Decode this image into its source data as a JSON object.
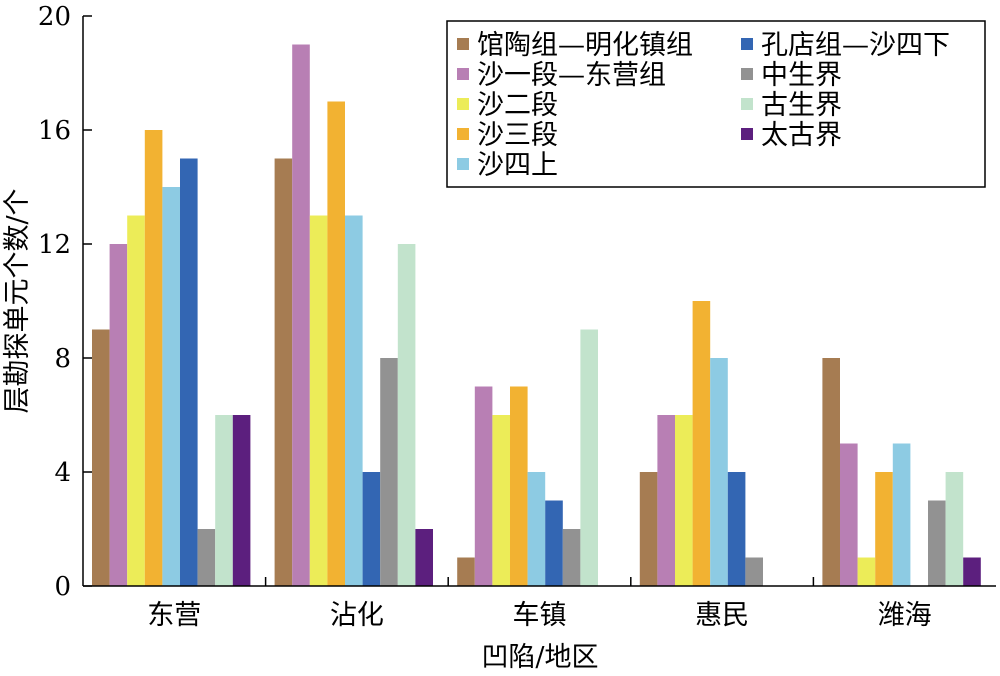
{
  "chart_data": {
    "type": "bar",
    "xlabel": "凹陷/地区",
    "ylabel": "层勘探单元个数/个",
    "ylim": [
      0,
      20
    ],
    "yticks": [
      0,
      4,
      8,
      12,
      16,
      20
    ],
    "grid": false,
    "legend_position": "top-right",
    "categories": [
      "东营",
      "沾化",
      "车镇",
      "惠民",
      "潍海"
    ],
    "series": [
      {
        "name": "馆陶组—明化镇组",
        "color": "#a67c52",
        "values": [
          9,
          15,
          1,
          4,
          8
        ]
      },
      {
        "name": "沙一段—东营组",
        "color": "#b87fb4",
        "values": [
          12,
          19,
          7,
          6,
          5
        ]
      },
      {
        "name": "沙二段",
        "color": "#ecec58",
        "values": [
          13,
          13,
          6,
          6,
          1
        ]
      },
      {
        "name": "沙三段",
        "color": "#f2b232",
        "values": [
          16,
          17,
          7,
          10,
          4
        ]
      },
      {
        "name": "沙四上",
        "color": "#8dcbe3",
        "values": [
          14,
          13,
          4,
          8,
          5
        ]
      },
      {
        "name": "孔店组—沙四下",
        "color": "#3366b3",
        "values": [
          15,
          4,
          3,
          4,
          0
        ]
      },
      {
        "name": "中生界",
        "color": "#929292",
        "values": [
          2,
          8,
          2,
          1,
          3
        ]
      },
      {
        "name": "古生界",
        "color": "#c2e3cc",
        "values": [
          6,
          12,
          9,
          0,
          4
        ]
      },
      {
        "name": "太古界",
        "color": "#5c1f7e",
        "values": [
          6,
          2,
          0,
          0,
          1
        ]
      }
    ]
  }
}
